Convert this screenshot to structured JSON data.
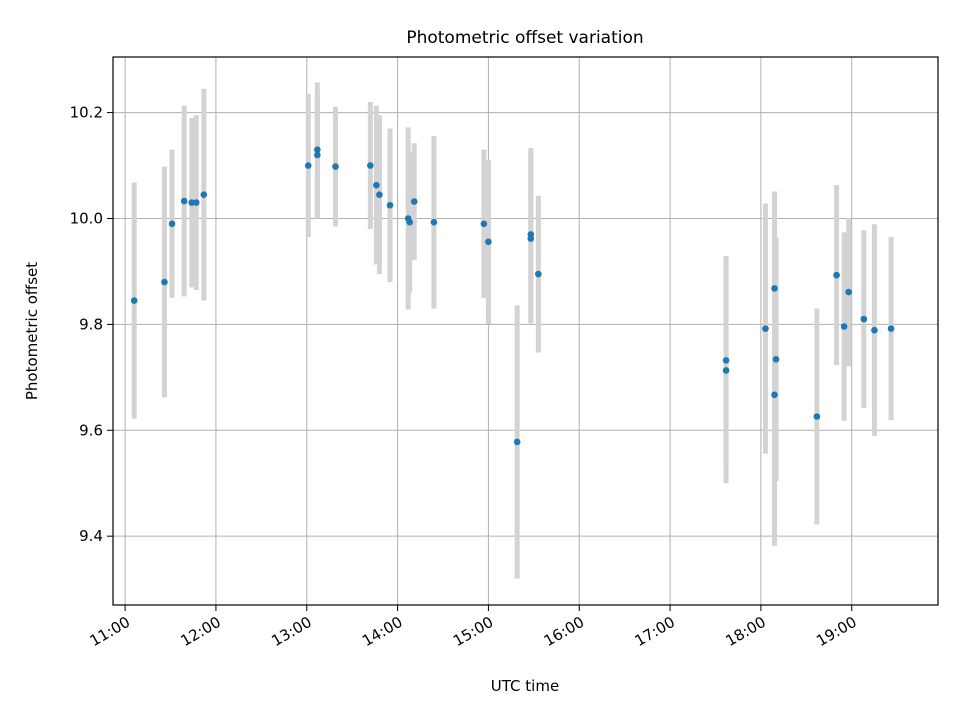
{
  "chart_data": {
    "type": "scatter",
    "title": "Photometric offset variation",
    "xlabel": "UTC time",
    "ylabel": "Photometric offset",
    "xlim": [
      "10:52",
      "19:57"
    ],
    "ylim": [
      9.27,
      10.305
    ],
    "x_ticks": [
      "11:00",
      "12:00",
      "13:00",
      "14:00",
      "15:00",
      "16:00",
      "17:00",
      "18:00",
      "19:00"
    ],
    "y_ticks": [
      9.4,
      9.6,
      9.8,
      10.0,
      10.2
    ],
    "y_tick_labels": [
      "9.4",
      "9.6",
      "9.8",
      "10.0",
      "10.2"
    ],
    "grid": true,
    "point_color": "#1f77b4",
    "errorbar_color": "#d3d3d3",
    "points": [
      {
        "time": "11:06",
        "y": 9.845,
        "err": 0.223
      },
      {
        "time": "11:26",
        "y": 9.88,
        "err": 0.218
      },
      {
        "time": "11:31",
        "y": 9.99,
        "err": 0.14
      },
      {
        "time": "11:39",
        "y": 10.033,
        "err": 0.18
      },
      {
        "time": "11:44",
        "y": 10.03,
        "err": 0.16
      },
      {
        "time": "11:47",
        "y": 10.03,
        "err": 0.165
      },
      {
        "time": "11:52",
        "y": 10.045,
        "err": 0.2
      },
      {
        "time": "13:01",
        "y": 10.1,
        "err": 0.135
      },
      {
        "time": "13:07",
        "y": 10.13,
        "err": 0.127
      },
      {
        "time": "13:07",
        "y": 10.12,
        "err": 0.12
      },
      {
        "time": "13:19",
        "y": 10.098,
        "err": 0.113
      },
      {
        "time": "13:42",
        "y": 10.1,
        "err": 0.12
      },
      {
        "time": "13:46",
        "y": 10.063,
        "err": 0.15
      },
      {
        "time": "13:48",
        "y": 10.045,
        "err": 0.15
      },
      {
        "time": "13:55",
        "y": 10.025,
        "err": 0.145
      },
      {
        "time": "14:07",
        "y": 10.0,
        "err": 0.172
      },
      {
        "time": "14:08",
        "y": 9.993,
        "err": 0.133
      },
      {
        "time": "14:11",
        "y": 10.032,
        "err": 0.11
      },
      {
        "time": "14:24",
        "y": 9.993,
        "err": 0.163
      },
      {
        "time": "14:57",
        "y": 9.99,
        "err": 0.14
      },
      {
        "time": "15:00",
        "y": 9.956,
        "err": 0.155
      },
      {
        "time": "15:19",
        "y": 9.578,
        "err": 0.258
      },
      {
        "time": "15:28",
        "y": 9.97,
        "err": 0.163
      },
      {
        "time": "15:28",
        "y": 9.962,
        "err": 0.16
      },
      {
        "time": "15:33",
        "y": 9.895,
        "err": 0.148
      },
      {
        "time": "17:37",
        "y": 9.732,
        "err": 0.197
      },
      {
        "time": "17:37",
        "y": 9.713,
        "err": 0.213
      },
      {
        "time": "18:03",
        "y": 9.792,
        "err": 0.236
      },
      {
        "time": "18:09",
        "y": 9.868,
        "err": 0.183
      },
      {
        "time": "18:09",
        "y": 9.667,
        "err": 0.285
      },
      {
        "time": "18:10",
        "y": 9.734,
        "err": 0.23
      },
      {
        "time": "18:37",
        "y": 9.626,
        "err": 0.204
      },
      {
        "time": "18:50",
        "y": 9.893,
        "err": 0.17
      },
      {
        "time": "18:55",
        "y": 9.796,
        "err": 0.178
      },
      {
        "time": "18:58",
        "y": 9.861,
        "err": 0.14
      },
      {
        "time": "19:08",
        "y": 9.81,
        "err": 0.168
      },
      {
        "time": "19:15",
        "y": 9.789,
        "err": 0.2
      },
      {
        "time": "19:26",
        "y": 9.792,
        "err": 0.173
      }
    ]
  }
}
